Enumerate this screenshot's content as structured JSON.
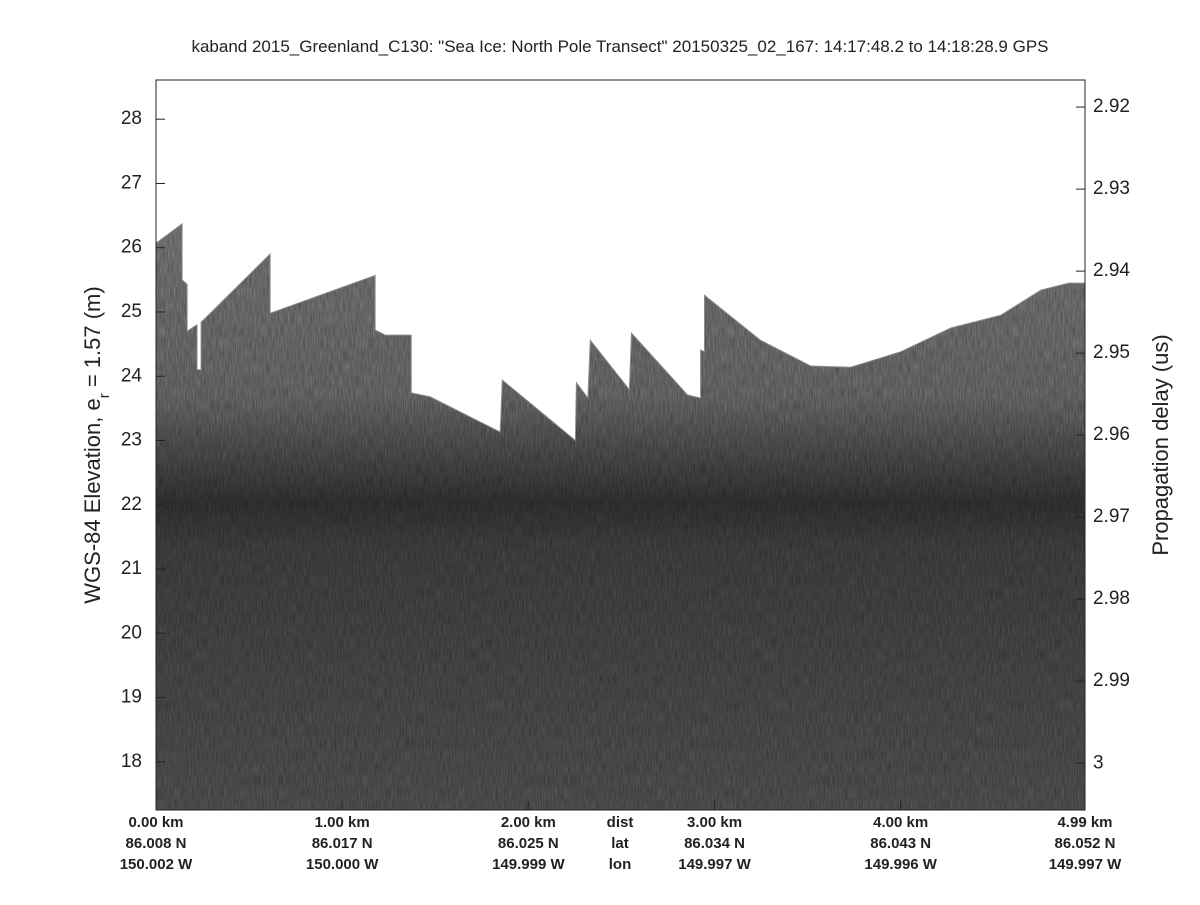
{
  "chart_data": {
    "type": "echogram",
    "title": "kaband 2015_Greenland_C130: \"Sea Ice: North Pole Transect\"  20150325_02_167: 14:17:48.2 to 14:18:28.9 GPS",
    "ylabel": [
      "WGS-84 Elevation, e",
      "r",
      " = 1.57 (m)"
    ],
    "y2label": "Propagation delay (us)",
    "xlim": [
      0,
      4.99
    ],
    "ylim": [
      17.25,
      28.61
    ],
    "yticks": [
      18,
      19,
      20,
      21,
      22,
      23,
      24,
      25,
      26,
      27,
      28
    ],
    "y2lim": [
      3.0057,
      2.9167
    ],
    "y2ticks": [
      2.92,
      2.93,
      2.94,
      2.95,
      2.96,
      2.97,
      2.98,
      2.99,
      3
    ],
    "xticks": [
      {
        "value": 0,
        "label": "0.00 km"
      },
      {
        "value": 1,
        "label": "1.00 km"
      },
      {
        "value": 2,
        "label": "2.00 km"
      },
      {
        "value": 3,
        "label": "3.00 km"
      },
      {
        "value": 4,
        "label": "4.00 km"
      },
      {
        "value": 4.99,
        "label": "4.99 km"
      }
    ],
    "lat_labels": [
      "86.008 N",
      "86.017 N",
      "86.025 N",
      "86.034 N",
      "86.043 N",
      "86.052 N"
    ],
    "lon_labels": [
      "150.002 W",
      "150.000 W",
      "149.999 W",
      "149.997 W",
      "149.996 W",
      "149.997 W"
    ],
    "row_names": [
      "dist",
      "lat",
      "lon"
    ],
    "surface": {
      "x": [
        0,
        0.14,
        0.14,
        0.167,
        0.167,
        0.22,
        0.22,
        0.242,
        0.242,
        0.613,
        0.613,
        1.177,
        1.177,
        1.231,
        1.371,
        1.371,
        1.473,
        1.849,
        1.86,
        2.253,
        2.258,
        2.32,
        2.333,
        2.543,
        2.554,
        2.855,
        2.925,
        2.925,
        2.946,
        2.946,
        3.247,
        3.516,
        3.731,
        4.0,
        4.269,
        4.538,
        4.753,
        4.903,
        4.99
      ],
      "elevation": [
        26.07,
        26.37,
        25.5,
        25.43,
        24.7,
        24.8,
        24.1,
        24.1,
        24.84,
        25.9,
        24.98,
        25.57,
        24.72,
        24.64,
        24.64,
        23.74,
        23.68,
        23.13,
        23.94,
        23.0,
        23.9,
        23.66,
        24.56,
        23.79,
        24.67,
        23.71,
        23.66,
        24.41,
        24.38,
        25.26,
        24.56,
        24.16,
        24.14,
        24.38,
        24.75,
        24.95,
        25.34,
        25.45,
        25.45
      ]
    }
  }
}
